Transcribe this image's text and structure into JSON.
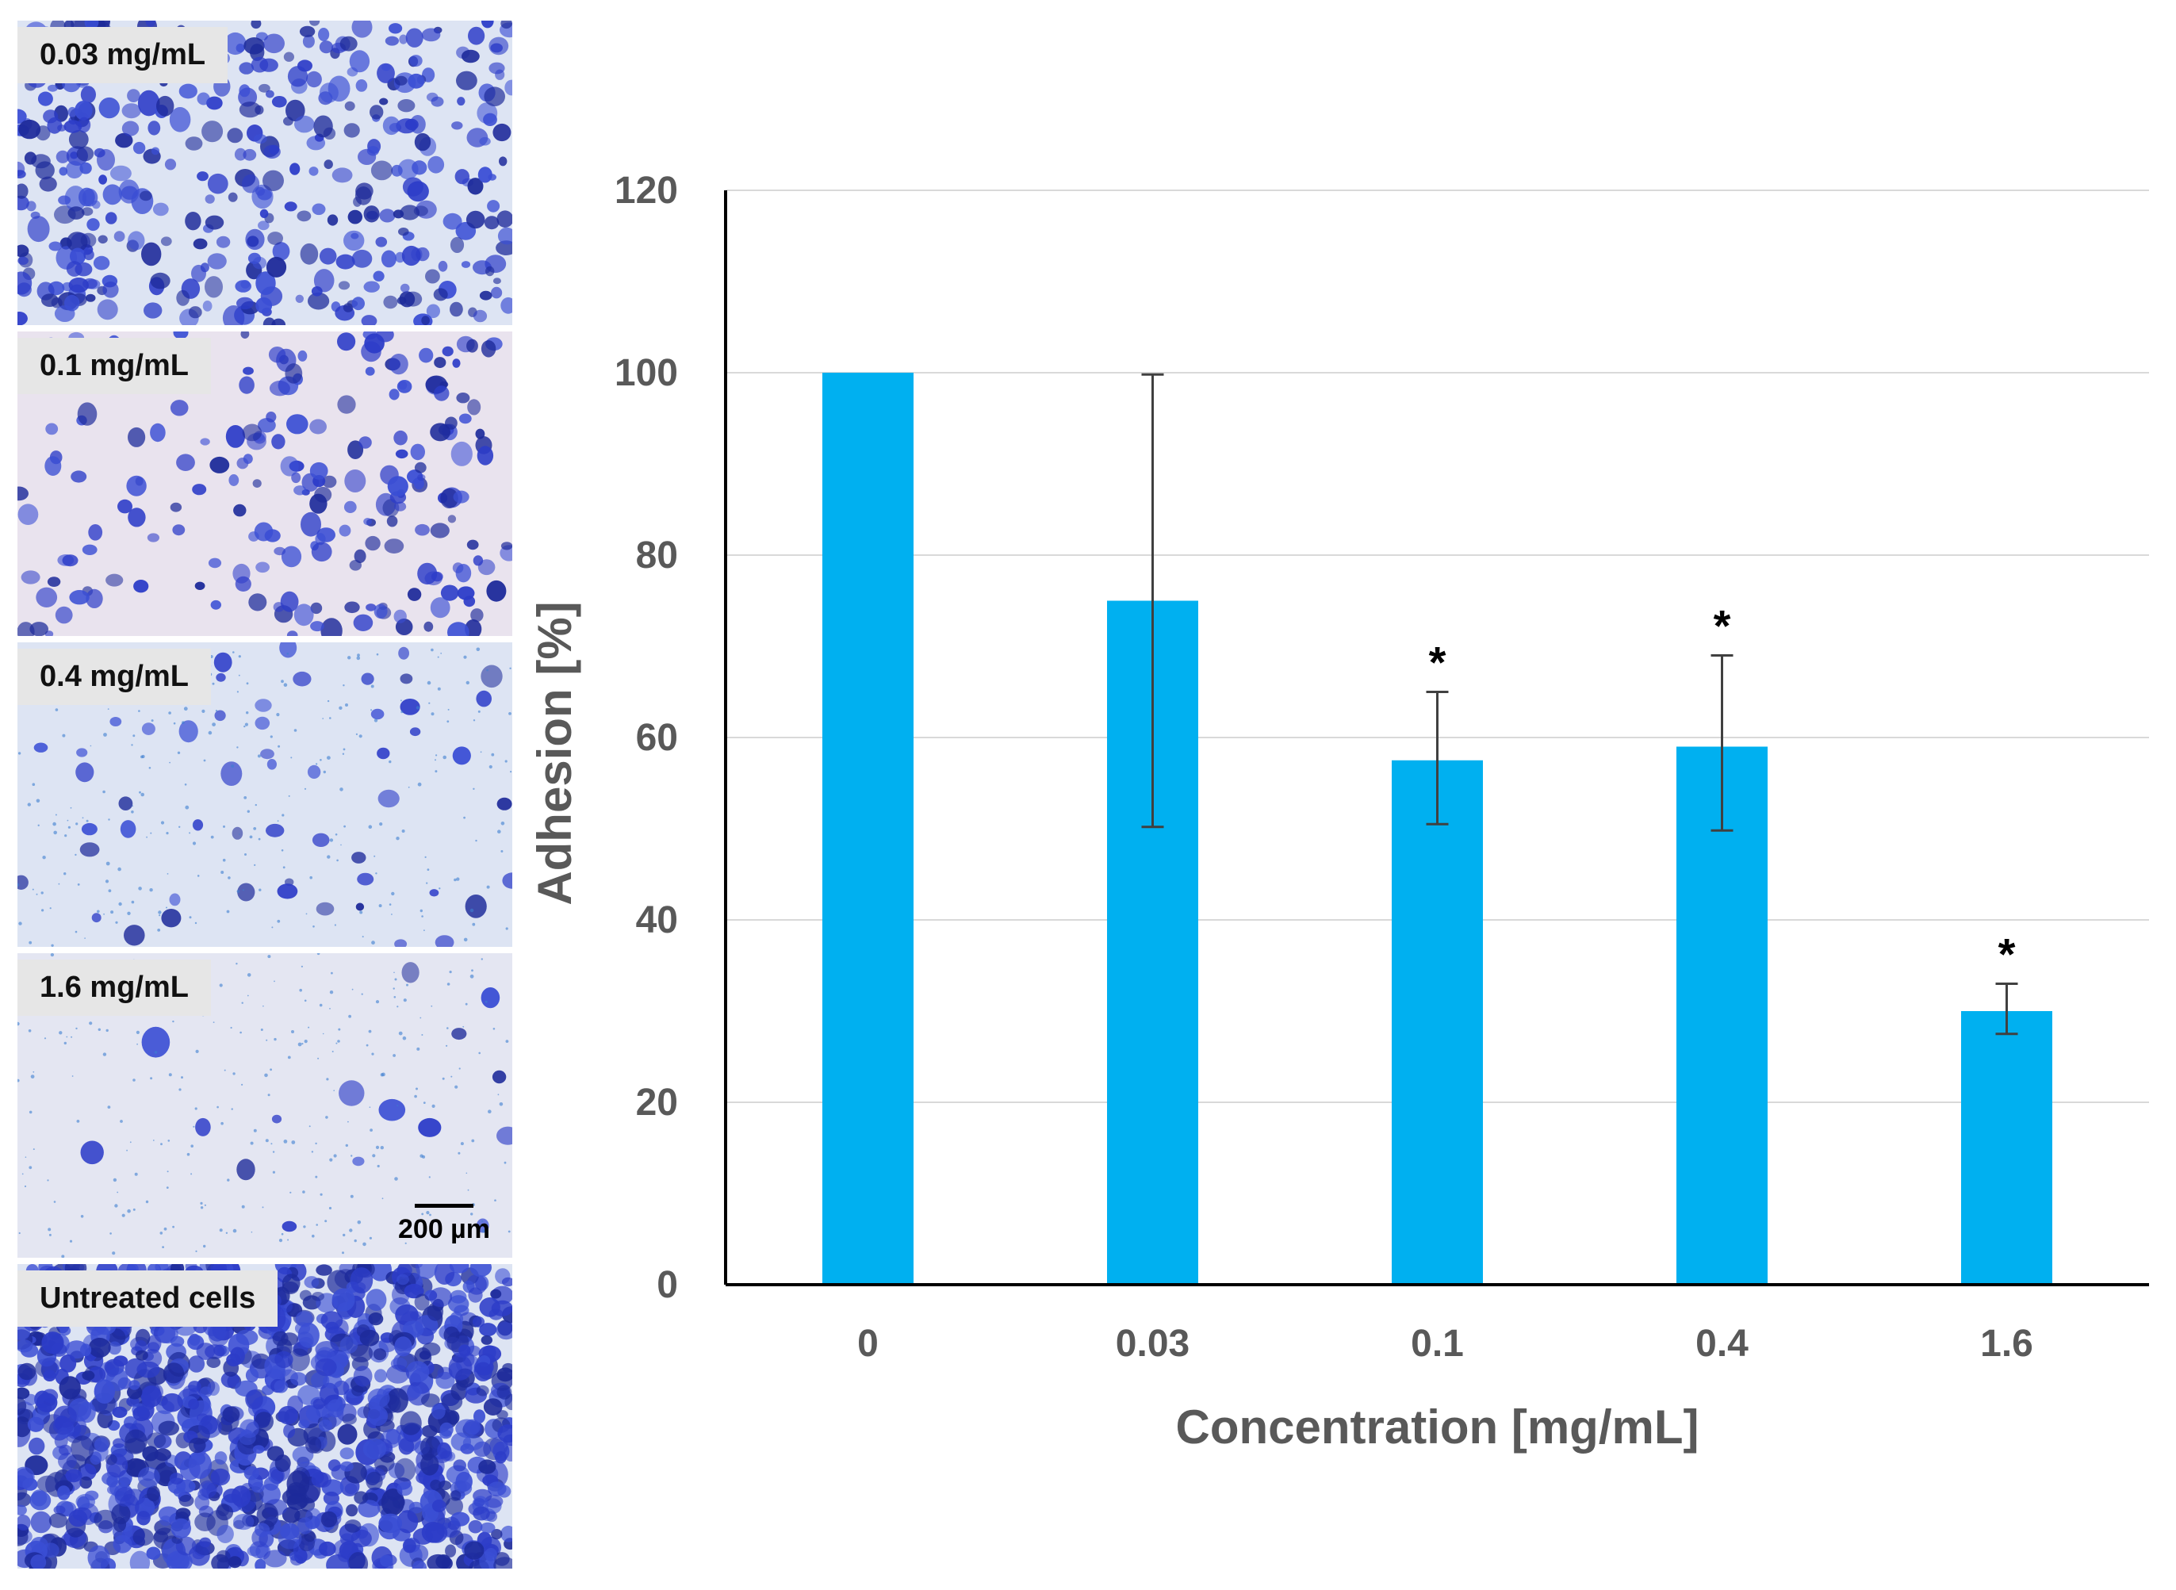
{
  "micrographs": [
    {
      "label": "0.03 mg/mL",
      "density": "high"
    },
    {
      "label": "0.1 mg/mL",
      "density": "medium"
    },
    {
      "label": "0.4 mg/mL",
      "density": "low"
    },
    {
      "label": "1.6 mg/mL",
      "density": "very-low"
    },
    {
      "label": "Untreated cells",
      "density": "confluent"
    }
  ],
  "scale_bar": {
    "label": "200 µm"
  },
  "colors": {
    "bar": "#00b0f0",
    "error": "#404040",
    "grid": "#d9d9d9",
    "axis": "#000000",
    "text": "#595959",
    "stain": "#2c3cc8",
    "background": "#dfe6f4"
  },
  "chart_data": {
    "type": "bar",
    "categories": [
      "0",
      "0.03",
      "0.1",
      "0.4",
      "1.6"
    ],
    "values": [
      100,
      75,
      57.5,
      59,
      30
    ],
    "error_low": [
      100,
      50.2,
      50.5,
      49.8,
      27.5
    ],
    "error_high": [
      100,
      99.8,
      65,
      69,
      33
    ],
    "significance": [
      "",
      "",
      "*",
      "*",
      "*"
    ],
    "title": "",
    "xlabel": "Concentration [mg/mL]",
    "ylabel": "Adhesion [%]",
    "ylim": [
      0,
      120
    ],
    "yticks": [
      0,
      20,
      40,
      60,
      80,
      100,
      120
    ],
    "grid": true
  }
}
